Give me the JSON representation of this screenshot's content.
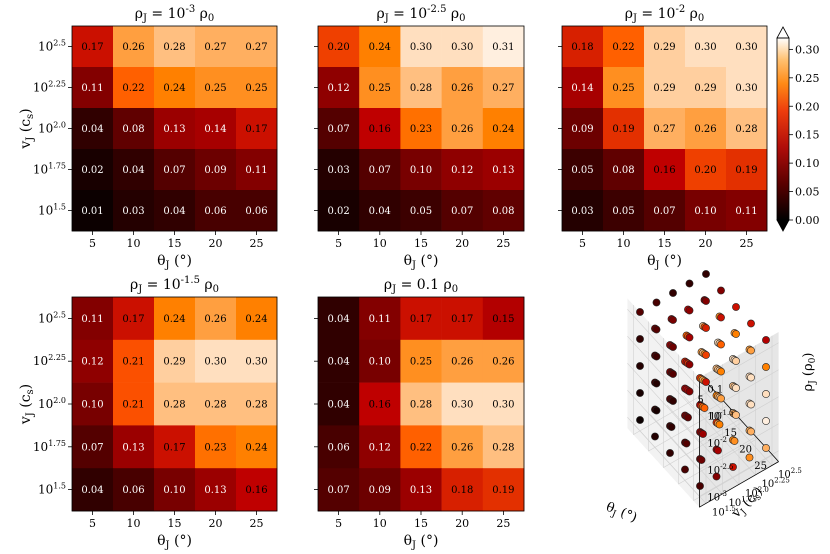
{
  "chart_data": [
    {
      "type": "heatmap",
      "title": "ρ_J = 10^{-3} ρ_0",
      "xlabel": "θ_J (°)",
      "ylabel": "v_J (c_s)",
      "x": [
        "5",
        "10",
        "15",
        "20",
        "25"
      ],
      "y": [
        "10^{2.5}",
        "10^{2.25}",
        "10^{2.0}",
        "10^{1.75}",
        "10^{1.5}"
      ],
      "values": [
        [
          0.17,
          0.26,
          0.28,
          0.27,
          0.27
        ],
        [
          0.11,
          0.22,
          0.24,
          0.25,
          0.25
        ],
        [
          0.04,
          0.08,
          0.13,
          0.14,
          0.17
        ],
        [
          0.02,
          0.04,
          0.07,
          0.09,
          0.11
        ],
        [
          0.01,
          0.03,
          0.04,
          0.06,
          0.06
        ]
      ]
    },
    {
      "type": "heatmap",
      "title": "ρ_J = 10^{-2.5} ρ_0",
      "xlabel": "θ_J (°)",
      "ylabel": "",
      "x": [
        "5",
        "10",
        "15",
        "20",
        "25"
      ],
      "y": [
        "",
        "",
        "",
        "",
        ""
      ],
      "values": [
        [
          0.2,
          0.24,
          0.3,
          0.3,
          0.31
        ],
        [
          0.12,
          0.25,
          0.28,
          0.26,
          0.27
        ],
        [
          0.07,
          0.16,
          0.23,
          0.26,
          0.24
        ],
        [
          0.03,
          0.07,
          0.1,
          0.12,
          0.13
        ],
        [
          0.02,
          0.04,
          0.05,
          0.07,
          0.08
        ]
      ]
    },
    {
      "type": "heatmap",
      "title": "ρ_J = 10^{-2} ρ_0",
      "xlabel": "θ_J (°)",
      "ylabel": "",
      "x": [
        "5",
        "10",
        "15",
        "20",
        "25"
      ],
      "y": [
        "",
        "",
        "",
        "",
        ""
      ],
      "values": [
        [
          0.18,
          0.22,
          0.29,
          0.3,
          0.3
        ],
        [
          0.14,
          0.25,
          0.29,
          0.29,
          0.3
        ],
        [
          0.09,
          0.19,
          0.27,
          0.26,
          0.28
        ],
        [
          0.05,
          0.08,
          0.16,
          0.2,
          0.19
        ],
        [
          0.03,
          0.05,
          0.07,
          0.1,
          0.11
        ]
      ],
      "colorbar": {
        "ticks": [
          "0.00",
          "0.05",
          "0.10",
          "0.15",
          "0.20",
          "0.25",
          "0.30"
        ],
        "range": [
          0,
          0.32
        ]
      }
    },
    {
      "type": "heatmap",
      "title": "ρ_J = 10^{-1.5} ρ_0",
      "xlabel": "θ_J (°)",
      "ylabel": "v_J (c_s)",
      "x": [
        "5",
        "10",
        "15",
        "20",
        "25"
      ],
      "y": [
        "10^{2.5}",
        "10^{2.25}",
        "10^{2.0}",
        "10^{1.75}",
        "10^{1.5}"
      ],
      "values": [
        [
          0.11,
          0.17,
          0.24,
          0.26,
          0.24
        ],
        [
          0.12,
          0.21,
          0.29,
          0.3,
          0.3
        ],
        [
          0.1,
          0.21,
          0.28,
          0.28,
          0.28
        ],
        [
          0.07,
          0.13,
          0.17,
          0.23,
          0.24
        ],
        [
          0.04,
          0.06,
          0.1,
          0.13,
          0.16
        ]
      ]
    },
    {
      "type": "heatmap",
      "title": "ρ_J = 0.1 ρ_0",
      "xlabel": "θ_J (°)",
      "ylabel": "",
      "x": [
        "5",
        "10",
        "15",
        "20",
        "25"
      ],
      "y": [
        "",
        "",
        "",
        "",
        ""
      ],
      "values": [
        [
          0.04,
          0.11,
          0.17,
          0.17,
          0.15
        ],
        [
          0.04,
          0.1,
          0.25,
          0.26,
          0.26
        ],
        [
          0.04,
          0.16,
          0.28,
          0.3,
          0.3
        ],
        [
          0.06,
          0.12,
          0.22,
          0.26,
          0.28
        ],
        [
          0.07,
          0.09,
          0.13,
          0.18,
          0.19
        ]
      ]
    },
    {
      "type": "scatter",
      "title": "",
      "xlabel": "θ_J (°)",
      "ylabel": "v_J (c_s)",
      "zlabel": "ρ_J (ρ_0)",
      "x_ticks": [
        "5",
        "10",
        "15",
        "20",
        "25"
      ],
      "y_ticks": [
        "10^{1.5}",
        "10^{1.75}",
        "10^{2.0}",
        "10^{2.25}",
        "10^{2.5}"
      ],
      "z_ticks": [
        "10^{-3}",
        "10^{-2.5}",
        "10^{-2}",
        "10^{-1.5}",
        "0.1"
      ],
      "note_values": "25 points per density level; colour = value from the matching heatmap"
    }
  ]
}
